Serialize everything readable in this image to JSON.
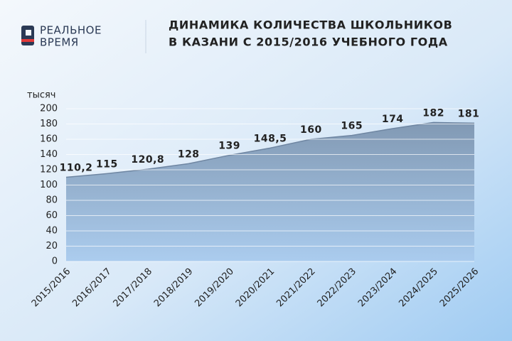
{
  "logo": [
    "РЕАЛЬНОЕ",
    "ВРЕМЯ"
  ],
  "chart_data": {
    "type": "area",
    "title": [
      "ДИНАМИКА КОЛИЧЕСТВА ШКОЛЬНИКОВ",
      "В КАЗАНИ С 2015/2016 УЧЕБНОГО ГОДА"
    ],
    "y_label": "тысяч",
    "categories": [
      "2015/2016",
      "2016/2017",
      "2017/2018",
      "2018/2019",
      "2019/2020",
      "2020/2021",
      "2021/2022",
      "2022/2023",
      "2023/2024",
      "2024/2025",
      "2025/2026"
    ],
    "values": [
      110.2,
      115,
      120.8,
      128,
      139,
      148.5,
      160,
      165,
      174,
      182,
      181
    ],
    "value_labels": [
      "110,2",
      "115",
      "120,8",
      "128",
      "139",
      "148,5",
      "160",
      "165",
      "174",
      "182",
      "181"
    ],
    "color": "#7d95b0",
    "ylim": [
      0,
      200
    ],
    "yticks": [
      0,
      20,
      40,
      60,
      80,
      100,
      120,
      140,
      160,
      180,
      200
    ],
    "grid": true
  }
}
